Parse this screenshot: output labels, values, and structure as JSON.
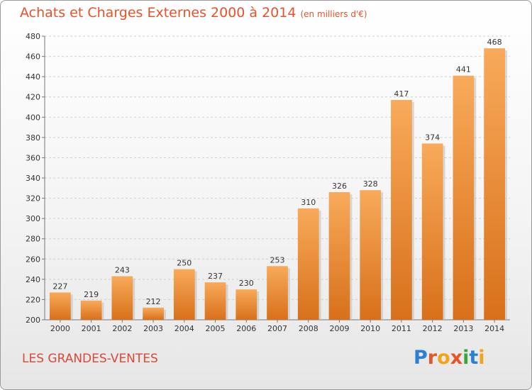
{
  "chart_data": {
    "type": "bar",
    "title": "Achats et Charges Externes 2000 à 2014",
    "subtitle": "(en milliers d'€)",
    "categories": [
      "2000",
      "2001",
      "2002",
      "2003",
      "2004",
      "2005",
      "2006",
      "2007",
      "2008",
      "2009",
      "2010",
      "2011",
      "2012",
      "2013",
      "2014"
    ],
    "values": [
      227,
      219,
      243,
      212,
      250,
      237,
      230,
      253,
      310,
      326,
      328,
      417,
      374,
      441,
      468
    ],
    "ylim": [
      200,
      480
    ],
    "yticks": [
      200,
      220,
      240,
      260,
      280,
      300,
      320,
      340,
      360,
      380,
      400,
      420,
      440,
      460,
      480
    ],
    "grid": true,
    "bar_color": "#f0902e",
    "bar_color_light": "#f8aa5a",
    "bar_color_dark": "#d8701a"
  },
  "footer": {
    "place": "LES GRANDES-VENTES"
  },
  "logo": {
    "letters": [
      {
        "ch": "P",
        "color": "#2b7fd4"
      },
      {
        "ch": "r",
        "color": "#e8542a"
      },
      {
        "ch": "o",
        "color": "#f3a21a"
      },
      {
        "ch": "x",
        "color": "#e8542a"
      },
      {
        "ch": "i",
        "color": "#3aa63a"
      },
      {
        "ch": "t",
        "color": "#2b7fd4"
      },
      {
        "ch": "i",
        "color": "#f3a21a"
      }
    ]
  }
}
